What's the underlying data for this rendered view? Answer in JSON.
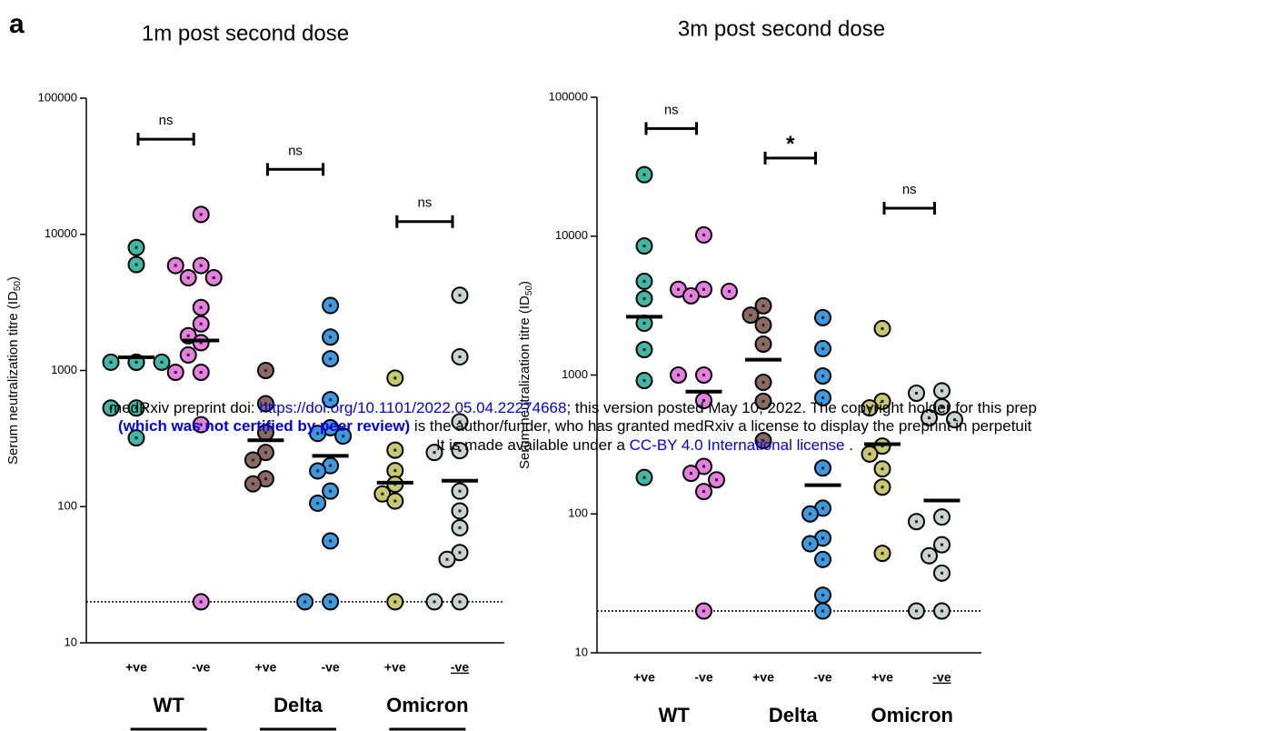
{
  "panel_label": "a",
  "watermark": {
    "line1": [
      "medRxiv preprint doi: ",
      "https://doi.org/10.1101/2022.05.04.22274668",
      "; this version posted May 10, 2022. The copyright holder for this prep"
    ],
    "line2": [
      "(which was not certified by peer review)",
      " is the author/funder, who has granted medRxiv a license to display the preprint in perpetuit"
    ],
    "line3": [
      "It is made available under a ",
      "CC-BY 4.0 International license",
      " ."
    ]
  },
  "chart_data": [
    {
      "type": "dotplot",
      "title": "1m post second dose",
      "ylabel": [
        "Serum neutralization titre (ID",
        "50",
        ")"
      ],
      "log_scale": true,
      "ylim": [
        10,
        100000
      ],
      "yticks": [
        10,
        100,
        1000,
        10000,
        100000
      ],
      "categories": [
        "+ve",
        "-ve",
        "+ve",
        "-ve",
        "+ve",
        "-ve"
      ],
      "groups": [
        "WT",
        "Delta",
        "Omicron"
      ],
      "colors": [
        "#3fb8a4",
        "#e77fe0",
        "#8b6a62",
        "#3b9ae0",
        "#c9c86e",
        "#c8d4d0"
      ],
      "values": [
        [
          8000,
          6000,
          1150,
          1150,
          1150,
          1150,
          530,
          530,
          320
        ],
        [
          14000,
          5900,
          5900,
          4800,
          4800,
          2900,
          2200,
          1800,
          1600,
          1300,
          970,
          970,
          400,
          20
        ],
        [
          1000,
          570,
          350,
          250,
          220,
          160,
          147
        ],
        [
          3000,
          1760,
          1220,
          610,
          380,
          345,
          330,
          200,
          183,
          130,
          106,
          56,
          20,
          20
        ],
        [
          880,
          260,
          184,
          146,
          124,
          110,
          20
        ],
        [
          3570,
          1260,
          420,
          258,
          250,
          130,
          93,
          70,
          46,
          41,
          20,
          20
        ]
      ],
      "medians": [
        1250,
        1660,
        307,
        236,
        150,
        155
      ],
      "threshold": 20,
      "annotations": [
        {
          "text": "ns",
          "from": 0,
          "to": 1,
          "y": 50000
        },
        {
          "text": "ns",
          "from": 2,
          "to": 3,
          "y": 30000
        },
        {
          "text": "ns",
          "from": 4,
          "to": 5,
          "y": 12400
        }
      ]
    },
    {
      "type": "dotplot",
      "title": "3m post second dose",
      "ylabel": [
        "Serum neutralization titre (ID",
        "50",
        ")"
      ],
      "log_scale": true,
      "ylim": [
        10,
        100000
      ],
      "yticks": [
        10,
        100,
        1000,
        10000,
        100000
      ],
      "categories": [
        "+ve",
        "-ve",
        "+ve",
        "-ve",
        "+ve",
        "-ve"
      ],
      "groups": [
        "WT",
        "Delta",
        "Omicron"
      ],
      "colors": [
        "#3fb8a4",
        "#e77fe0",
        "#8b6a62",
        "#3b9ae0",
        "#c9c86e",
        "#c8d4d0"
      ],
      "values": [
        [
          27700,
          8500,
          4730,
          3550,
          2360,
          1525,
          913,
          183
        ],
        [
          10200,
          4140,
          4140,
          4000,
          3720,
          1000,
          1000,
          655,
          220,
          196,
          176,
          145,
          20
        ],
        [
          3150,
          2700,
          2290,
          1670,
          886,
          647,
          337
        ],
        [
          2590,
          1550,
          985,
          686,
          214,
          110,
          100,
          67,
          61,
          47,
          26,
          20
        ],
        [
          2160,
          647,
          580,
          308,
          270,
          211,
          156,
          52
        ],
        [
          770,
          740,
          590,
          492,
          477,
          95,
          88,
          60,
          50,
          37.5,
          20,
          20
        ]
      ],
      "medians": [
        2630,
        760,
        1290,
        161,
        318,
        125
      ],
      "threshold": 20,
      "annotations": [
        {
          "text": "ns",
          "from": 0,
          "to": 1,
          "y": 59600
        },
        {
          "text": "*",
          "from": 2,
          "to": 3,
          "y": 36500
        },
        {
          "text": "ns",
          "from": 4,
          "to": 5,
          "y": 15900
        }
      ]
    }
  ]
}
